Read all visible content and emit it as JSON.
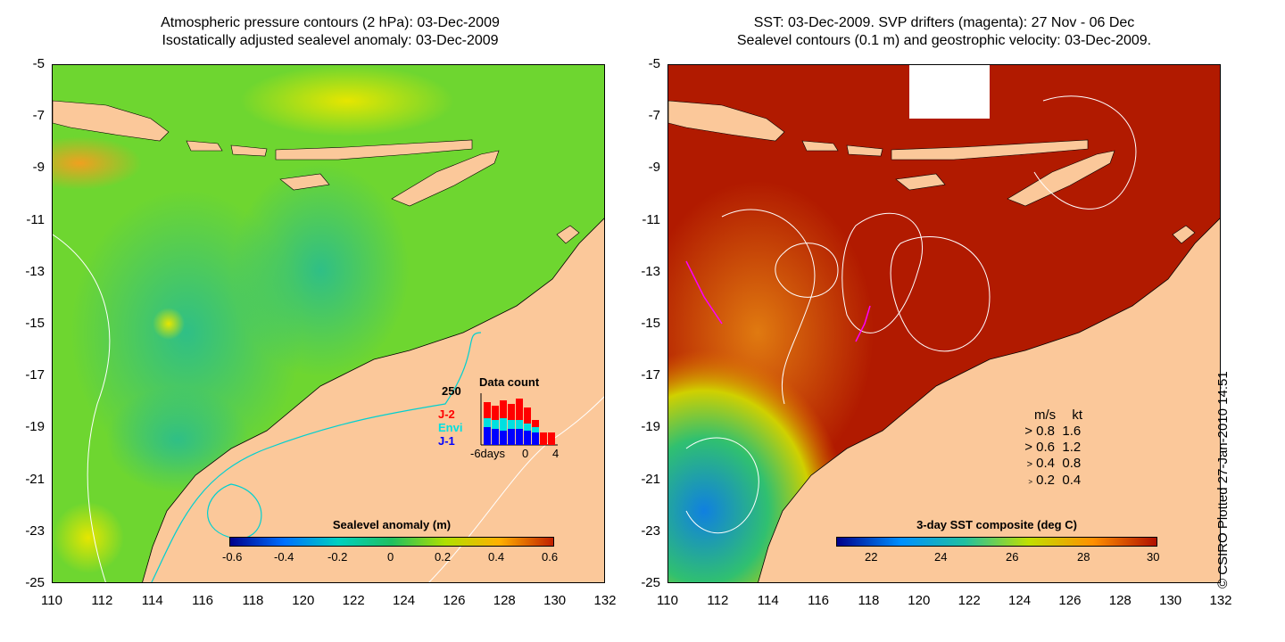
{
  "left": {
    "title_line1": "Atmospheric pressure contours (2 hPa): 03-Dec-2009",
    "title_line2": "Isostatically adjusted sealevel anomaly: 03-Dec-2009",
    "colorbar_title": "Sealevel anomaly (m)",
    "colorbar_ticks": [
      "-0.6",
      "-0.4",
      "-0.2",
      "0",
      "0.2",
      "0.4",
      "0.6"
    ],
    "colorbar_colors": [
      "#00008b",
      "#0070ff",
      "#00d0c0",
      "#20c060",
      "#b0e000",
      "#ffb000",
      "#c02000"
    ],
    "inset_title": "Data count",
    "inset_ymax": "250",
    "inset_xticks": [
      "-6days",
      "0",
      "4"
    ],
    "inset_legend": [
      {
        "label": "J-2",
        "color": "#ff0000"
      },
      {
        "label": "Envi",
        "color": "#00e0e0"
      },
      {
        "label": "J-1",
        "color": "#0000ff"
      }
    ]
  },
  "right": {
    "title_line1": "SST: 03-Dec-2009. SVP drifters (magenta): 27 Nov - 06 Dec",
    "title_line2": "Sealevel contours (0.1 m) and geostrophic velocity: 03-Dec-2009.",
    "colorbar_title": "3-day SST composite (deg C)",
    "colorbar_ticks": [
      "22",
      "24",
      "26",
      "28",
      "30"
    ],
    "colorbar_colors": [
      "#00008b",
      "#0090ff",
      "#20c0a0",
      "#c0e000",
      "#ff9000",
      "#b01000"
    ],
    "velocity_header": [
      "m/s",
      "kt"
    ],
    "velocity_rows": [
      [
        "0.8",
        "1.6"
      ],
      [
        "0.6",
        "1.2"
      ],
      [
        "0.4",
        "0.8"
      ],
      [
        "0.2",
        "0.4"
      ]
    ],
    "credit": "© CSIRO Plotted 27-Jan-2010 14:51"
  },
  "axes": {
    "y_ticks": [
      "-5",
      "-7",
      "-9",
      "-11",
      "-13",
      "-15",
      "-17",
      "-19",
      "-21",
      "-23",
      "-25"
    ],
    "x_ticks": [
      "110",
      "112",
      "114",
      "116",
      "118",
      "120",
      "122",
      "124",
      "126",
      "128",
      "130",
      "132"
    ]
  },
  "colors": {
    "land": "#fbc89a",
    "sla_ocean": "#6ed630",
    "sst_ocean": "#b11a00"
  }
}
